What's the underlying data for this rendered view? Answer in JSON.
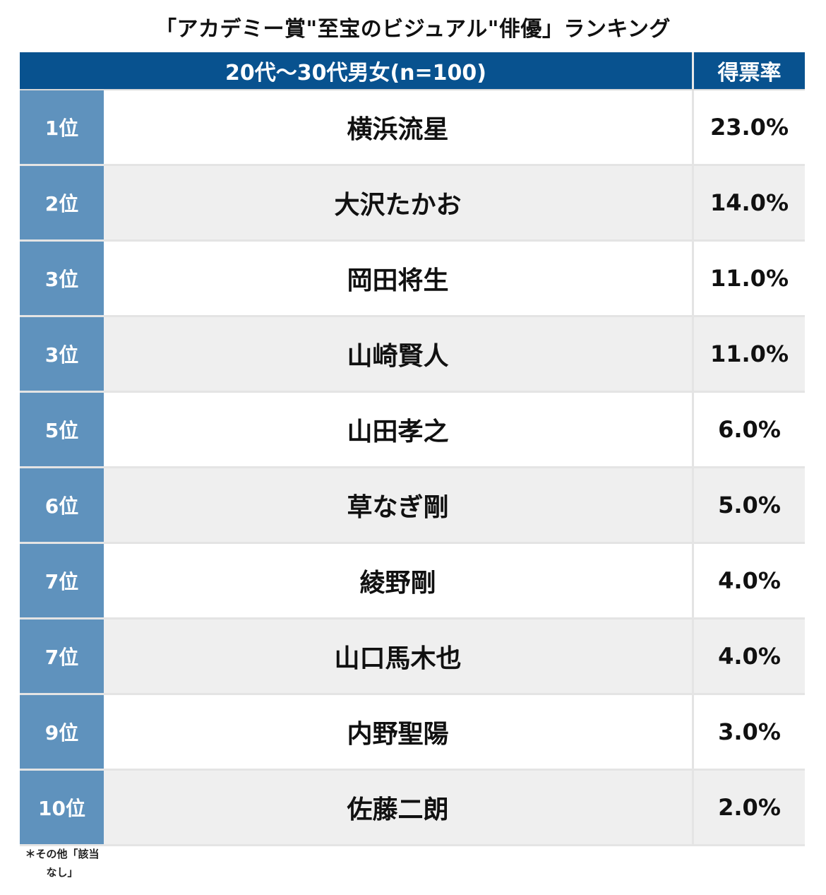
{
  "title": "「アカデミー賞\"至宝のビジュアル\"俳優」ランキング",
  "header": {
    "main": "20代〜30代男女(n=100)",
    "rate": "得票率"
  },
  "rows": [
    {
      "rank": "1位",
      "name": "横浜流星",
      "rate": "23.0%"
    },
    {
      "rank": "2位",
      "name": "大沢たかお",
      "rate": "14.0%"
    },
    {
      "rank": "3位",
      "name": "岡田将生",
      "rate": "11.0%"
    },
    {
      "rank": "3位",
      "name": "山崎賢人",
      "rate": "11.0%"
    },
    {
      "rank": "5位",
      "name": "山田孝之",
      "rate": "6.0%"
    },
    {
      "rank": "6位",
      "name": "草なぎ剛",
      "rate": "5.0%"
    },
    {
      "rank": "7位",
      "name": "綾野剛",
      "rate": "4.0%"
    },
    {
      "rank": "7位",
      "name": "山口馬木也",
      "rate": "4.0%"
    },
    {
      "rank": "9位",
      "name": "内野聖陽",
      "rate": "3.0%"
    },
    {
      "rank": "10位",
      "name": "佐藤二朗",
      "rate": "2.0%"
    }
  ],
  "note": {
    "line1": "＊その他「該当",
    "line2": "なし」"
  },
  "colors": {
    "header_bg": "#08528f",
    "rank_bg": "#5f92bd",
    "row_alt_bg": "#efefef"
  }
}
